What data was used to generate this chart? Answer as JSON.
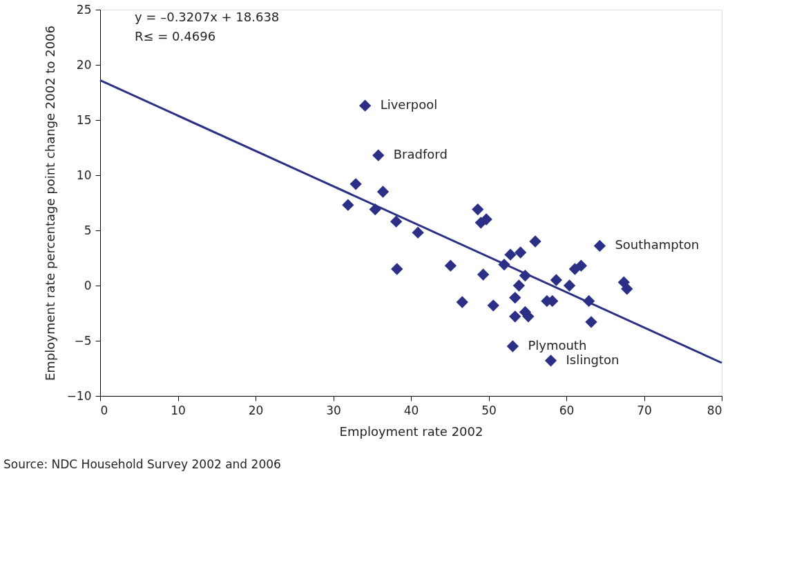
{
  "chart_data": {
    "type": "scatter",
    "xlabel": "Employment rate 2002",
    "ylabel": "Employment rate percentage point change 2002 to 2006",
    "xlim": [
      0,
      80
    ],
    "ylim": [
      -10,
      25
    ],
    "xticks": [
      0,
      10,
      20,
      30,
      40,
      50,
      60,
      70,
      80
    ],
    "yticks": [
      -10,
      -5,
      0,
      5,
      10,
      15,
      20,
      25
    ],
    "grid": false,
    "marker": "diamond",
    "series": [
      {
        "color": "#2b2f86",
        "x": [
          34.1,
          35.8,
          32.9,
          36.4,
          31.9,
          35.4,
          38.1,
          40.9,
          38.2,
          48.6,
          49.7,
          49.0,
          45.1,
          46.6,
          49.3,
          50.6,
          56.0,
          52.8,
          54.1,
          52.0,
          54.7,
          53.9,
          53.4,
          53.4,
          54.7,
          55.1,
          57.5,
          58.2,
          58.7,
          60.4,
          61.1,
          61.9,
          62.9,
          63.2,
          64.3,
          67.4,
          67.8,
          53.1,
          58.0
        ],
        "values": [
          16.3,
          11.8,
          9.2,
          8.5,
          7.3,
          6.9,
          5.8,
          4.8,
          1.5,
          6.9,
          6.0,
          5.7,
          1.8,
          -1.5,
          1.0,
          -1.8,
          4.0,
          2.8,
          3.0,
          1.9,
          0.9,
          0.0,
          -1.1,
          -2.8,
          -2.4,
          -2.8,
          -1.4,
          -1.4,
          0.5,
          0.0,
          1.5,
          1.8,
          -1.4,
          -3.3,
          3.6,
          0.3,
          -0.3,
          -5.5,
          -6.8
        ]
      },
      {
        "type": "line",
        "color": "#2b2f86",
        "marker": "none",
        "line_style": "solid",
        "x": [
          0,
          80
        ],
        "values": [
          18.6,
          -7.0
        ]
      }
    ],
    "annotations": [
      {
        "text": "Liverpool",
        "x": 34.1,
        "y": 16.3
      },
      {
        "text": "Bradford",
        "x": 35.8,
        "y": 11.8
      },
      {
        "text": "Southampton",
        "x": 64.3,
        "y": 3.6
      },
      {
        "text": "Plymouth",
        "x": 53.1,
        "y": -5.5
      },
      {
        "text": "Islington",
        "x": 58.0,
        "y": -6.8
      },
      "y     = –0.3207x + 18.638",
      "R≤  = 0.4696",
      "Source: NDC Household Survey 2002 and 2006"
    ]
  }
}
